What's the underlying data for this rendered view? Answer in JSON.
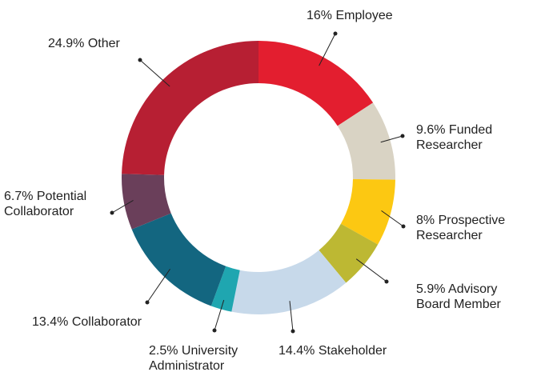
{
  "chart_data": {
    "type": "donut",
    "categories": [
      "Employee",
      "Funded Researcher",
      "Prospective Researcher",
      "Advisory Board Member",
      "Stakeholder",
      "University Administrator",
      "Collaborator",
      "Potential Collaborator",
      "Other"
    ],
    "values": [
      16,
      9.6,
      8,
      5.9,
      14.4,
      2.5,
      13.4,
      6.7,
      24.9
    ],
    "value_labels": [
      "16%",
      "9.6%",
      "8%",
      "5.9%",
      "14.4%",
      "2.5%",
      "13.4%",
      "6.7%",
      "24.9%"
    ],
    "colors": [
      "#e31e2f",
      "#d9d3c4",
      "#fcc812",
      "#bdb833",
      "#c7d9ea",
      "#1fa6b0",
      "#136680",
      "#6a3f5a",
      "#b71f33"
    ]
  }
}
